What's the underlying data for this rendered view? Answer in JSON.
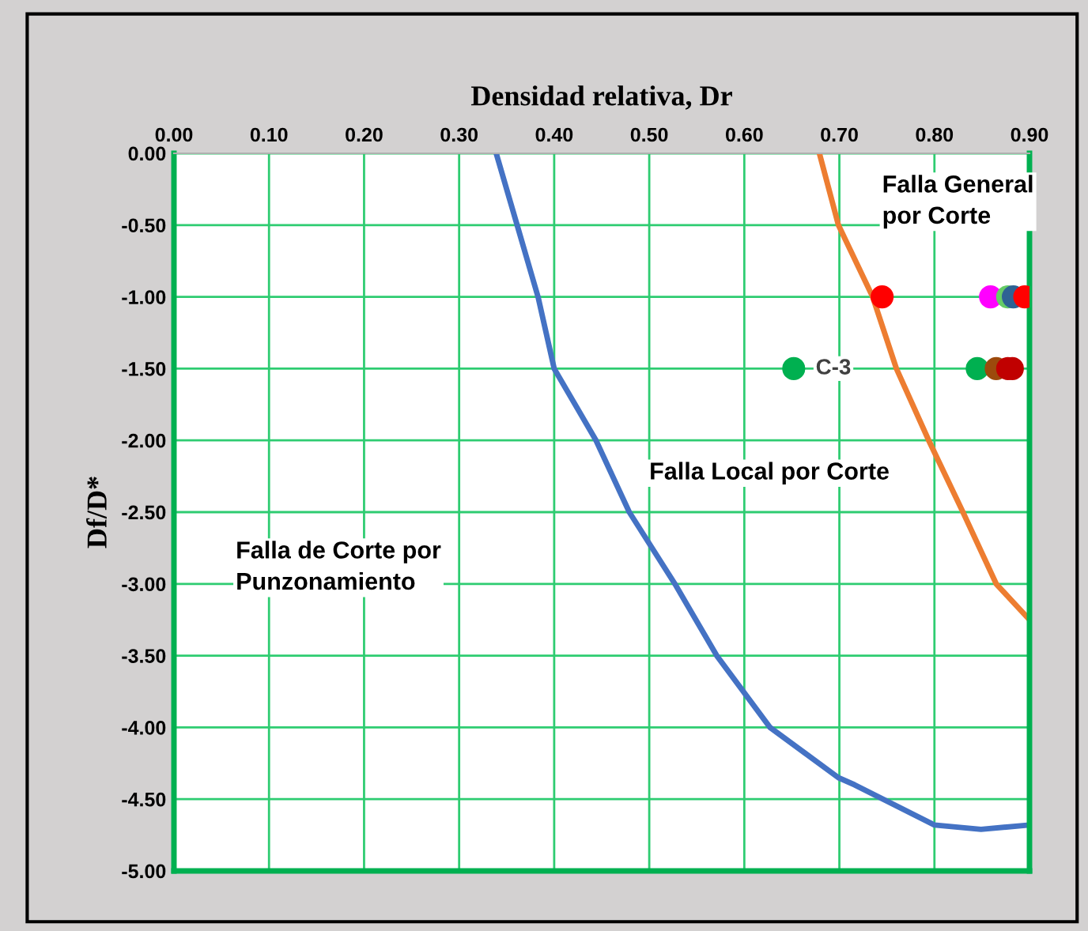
{
  "chart_data": {
    "type": "line",
    "xlabel": "Densidad relativa, Dr",
    "ylabel": "Df/D*",
    "xlim": [
      0,
      0.9
    ],
    "ylim": [
      -5,
      0
    ],
    "xticks": [
      {
        "value": 0,
        "label": "0.00"
      },
      {
        "value": 0.1,
        "label": "0.10"
      },
      {
        "value": 0.2,
        "label": "0.20"
      },
      {
        "value": 0.3,
        "label": "0.30"
      },
      {
        "value": 0.4,
        "label": "0.40"
      },
      {
        "value": 0.5,
        "label": "0.50"
      },
      {
        "value": 0.6,
        "label": "0.60"
      },
      {
        "value": 0.7,
        "label": "0.70"
      },
      {
        "value": 0.8,
        "label": "0.80"
      },
      {
        "value": 0.9,
        "label": "0.90"
      }
    ],
    "yticks": [
      {
        "value": 0,
        "label": "0.00"
      },
      {
        "value": -0.5,
        "label": "-0.50"
      },
      {
        "value": -1,
        "label": "-1.00"
      },
      {
        "value": -1.5,
        "label": "-1.50"
      },
      {
        "value": -2,
        "label": "-2.00"
      },
      {
        "value": -2.5,
        "label": "-2.50"
      },
      {
        "value": -3,
        "label": "-3.00"
      },
      {
        "value": -3.5,
        "label": "-3.50"
      },
      {
        "value": -4,
        "label": "-4.00"
      },
      {
        "value": -4.5,
        "label": "-4.50"
      },
      {
        "value": -5,
        "label": "-5.00"
      }
    ],
    "grid": true,
    "marker": "none",
    "line_style": "solid",
    "series": [
      {
        "color": "#4472c4",
        "x": [
          0.339,
          0.361,
          0.383,
          0.4,
          0.444,
          0.479,
          0.527,
          0.571,
          0.627,
          0.699,
          0.716,
          0.8,
          0.849,
          0.9
        ],
        "values": [
          0,
          -0.5,
          -1,
          -1.5,
          -2,
          -2.5,
          -3,
          -3.5,
          -4,
          -4.35,
          -4.4,
          -4.68,
          -4.71,
          -4.68
        ]
      },
      {
        "color": "#ed7d31",
        "x": [
          0.679,
          0.699,
          0.735,
          0.76,
          0.794,
          0.83,
          0.865,
          0.9
        ],
        "values": [
          0,
          -0.5,
          -1,
          -1.5,
          -2,
          -2.5,
          -3,
          -3.25
        ]
      },
      {
        "type": "scatter",
        "marker": "circle",
        "color": "#ff0000",
        "x": [
          0.745
        ],
        "values": [
          -1
        ]
      },
      {
        "type": "scatter",
        "marker": "circle",
        "color": "#ff00ff",
        "x": [
          0.859
        ],
        "values": [
          -1
        ]
      },
      {
        "type": "scatter",
        "marker": "circle",
        "color": "#66cc66",
        "x": [
          0.877
        ],
        "values": [
          -1
        ]
      },
      {
        "type": "scatter",
        "marker": "circle",
        "color": "#2e6294",
        "x": [
          0.883
        ],
        "values": [
          -1
        ]
      },
      {
        "type": "scatter",
        "marker": "circle",
        "color": "#ff0000",
        "x": [
          0.895
        ],
        "values": [
          -1
        ]
      },
      {
        "type": "scatter",
        "marker": "circle",
        "color": "#00b050",
        "x": [
          0.652
        ],
        "values": [
          -1.5
        ]
      },
      {
        "type": "scatter",
        "marker": "circle",
        "color": "#00b050",
        "x": [
          0.845
        ],
        "values": [
          -1.5
        ]
      },
      {
        "type": "scatter",
        "marker": "circle",
        "color": "#9c4a0c",
        "x": [
          0.865
        ],
        "values": [
          -1.5
        ]
      },
      {
        "type": "scatter",
        "marker": "circle",
        "color": "#c00000",
        "x": [
          0.877
        ],
        "values": [
          -1.5
        ]
      },
      {
        "type": "scatter",
        "marker": "circle",
        "color": "#c00000",
        "x": [
          0.882
        ],
        "values": [
          -1.5
        ]
      }
    ],
    "annotations": [
      {
        "text": "C-3",
        "x": 0.652,
        "y": -1.5
      },
      "Falla General por Corte",
      "Falla Local por Corte",
      "Falla de Corte por Punzonamiento"
    ]
  }
}
